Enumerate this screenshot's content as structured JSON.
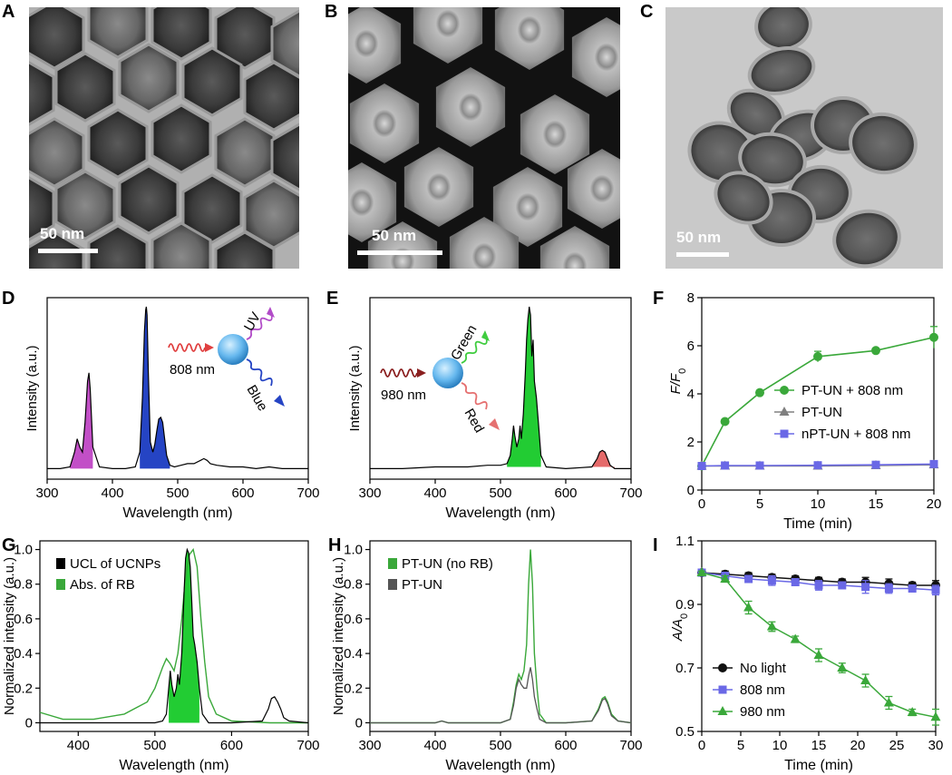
{
  "panels": {
    "A": {
      "letter": "A",
      "scale": "50 nm"
    },
    "B": {
      "letter": "B",
      "scale": "50 nm"
    },
    "C": {
      "letter": "C",
      "scale": "50 nm"
    },
    "D": {
      "letter": "D"
    },
    "E": {
      "letter": "E"
    },
    "F": {
      "letter": "F"
    },
    "G": {
      "letter": "G"
    },
    "H": {
      "letter": "H"
    },
    "I": {
      "letter": "I"
    }
  },
  "schemes": {
    "D": {
      "laser": "808 nm",
      "out1": "UV",
      "out2": "Blue"
    },
    "E": {
      "laser": "980 nm",
      "out1": "Green",
      "out2": "Red"
    }
  },
  "colors": {
    "uv": "#c24fc7",
    "blue": "#2544c4",
    "green": "#22cc33",
    "red": "#e56a6a",
    "line_green": "#3aa83a",
    "gray": "#808080",
    "purple_blue": "#6a68e6"
  },
  "chart_data": [
    {
      "id": "D",
      "type": "line",
      "xlabel": "Wavelength (nm)",
      "ylabel": "Intensity (a.u.)",
      "xlim": [
        300,
        700
      ],
      "xticks": [
        300,
        400,
        500,
        600,
        700
      ],
      "series": [
        {
          "x": [
            300,
            320,
            335,
            342,
            346,
            350,
            354,
            358,
            362,
            364,
            366,
            370,
            380,
            400,
            420,
            435,
            442,
            446,
            449,
            451,
            452,
            453,
            455,
            458,
            462,
            465,
            468,
            471,
            474,
            477,
            480,
            483,
            488,
            495,
            505,
            515,
            525,
            535,
            540,
            545,
            550,
            560,
            580,
            600,
            620,
            640,
            660,
            680,
            700
          ],
          "values": [
            0.02,
            0.02,
            0.03,
            0.12,
            0.2,
            0.15,
            0.12,
            0.3,
            0.55,
            0.6,
            0.5,
            0.15,
            0.03,
            0.02,
            0.02,
            0.03,
            0.12,
            0.45,
            0.85,
            0.98,
            1.0,
            0.95,
            0.6,
            0.18,
            0.12,
            0.17,
            0.25,
            0.32,
            0.33,
            0.3,
            0.2,
            0.1,
            0.04,
            0.03,
            0.04,
            0.05,
            0.05,
            0.07,
            0.08,
            0.07,
            0.05,
            0.04,
            0.03,
            0.03,
            0.02,
            0.03,
            0.02,
            0.02,
            0.02
          ]
        }
      ]
    },
    {
      "id": "E",
      "type": "line",
      "xlabel": "Wavelength (nm)",
      "ylabel": "Intensity (a.u.)",
      "xlim": [
        300,
        700
      ],
      "xticks": [
        300,
        400,
        500,
        600,
        700
      ],
      "series": [
        {
          "x": [
            300,
            350,
            400,
            450,
            480,
            500,
            510,
            515,
            518,
            520,
            522,
            525,
            528,
            530,
            532,
            535,
            538,
            540,
            542,
            544,
            546,
            548,
            550,
            552,
            555,
            558,
            562,
            570,
            600,
            640,
            648,
            652,
            656,
            660,
            664,
            668,
            675,
            700
          ],
          "values": [
            0.02,
            0.02,
            0.03,
            0.03,
            0.04,
            0.04,
            0.05,
            0.1,
            0.2,
            0.28,
            0.22,
            0.15,
            0.2,
            0.28,
            0.2,
            0.35,
            0.6,
            0.8,
            0.92,
            1.0,
            0.95,
            0.7,
            0.8,
            0.55,
            0.45,
            0.3,
            0.1,
            0.03,
            0.02,
            0.03,
            0.08,
            0.12,
            0.13,
            0.12,
            0.08,
            0.04,
            0.02,
            0.02
          ]
        }
      ]
    },
    {
      "id": "F",
      "type": "line",
      "xlabel": "Time (min)",
      "ylabel": "F/F0",
      "xlim": [
        0,
        20
      ],
      "ylim": [
        0,
        8
      ],
      "xticks": [
        0,
        5,
        10,
        15,
        20
      ],
      "yticks": [
        0,
        2,
        4,
        6,
        8
      ],
      "series": [
        {
          "name": "PT-UN + 808 nm",
          "x": [
            0,
            2,
            5,
            10,
            15,
            20
          ],
          "values": [
            1.0,
            2.85,
            4.05,
            5.55,
            5.8,
            6.35
          ],
          "err": [
            0.05,
            0.08,
            0.08,
            0.22,
            0.1,
            0.45
          ]
        },
        {
          "name": "PT-UN",
          "x": [
            0,
            2,
            5,
            10,
            15,
            20
          ],
          "values": [
            1.0,
            1.0,
            1.0,
            1.0,
            1.02,
            1.05
          ],
          "err": [
            0.05,
            0.05,
            0.05,
            0.05,
            0.05,
            0.05
          ]
        },
        {
          "name": "nPT-UN + 808 nm",
          "x": [
            0,
            2,
            5,
            10,
            15,
            20
          ],
          "values": [
            1.0,
            1.02,
            1.02,
            1.03,
            1.05,
            1.08
          ],
          "err": [
            0.05,
            0.05,
            0.05,
            0.05,
            0.05,
            0.05
          ]
        }
      ]
    },
    {
      "id": "G",
      "type": "line",
      "xlabel": "Wavelength (nm)",
      "ylabel": "Normalized intensity (a.u.)",
      "xlim": [
        350,
        700
      ],
      "ylim": [
        -0.05,
        1.05
      ],
      "xticks": [
        400,
        500,
        600,
        700
      ],
      "yticks": [
        0,
        0.2,
        0.4,
        0.6,
        0.8,
        1.0
      ],
      "series": [
        {
          "name": "UCL of UCNPs",
          "x": [
            350,
            400,
            450,
            480,
            500,
            510,
            515,
            518,
            520,
            522,
            525,
            528,
            530,
            532,
            535,
            538,
            540,
            542,
            544,
            546,
            548,
            550,
            552,
            555,
            558,
            562,
            570,
            600,
            640,
            648,
            652,
            656,
            660,
            664,
            668,
            675,
            700
          ],
          "values": [
            0,
            0,
            0,
            0,
            0,
            0.01,
            0.05,
            0.2,
            0.3,
            0.22,
            0.15,
            0.2,
            0.28,
            0.22,
            0.4,
            0.75,
            0.95,
            1.0,
            0.98,
            0.9,
            0.7,
            0.5,
            0.45,
            0.35,
            0.2,
            0.05,
            0,
            0,
            0.01,
            0.08,
            0.14,
            0.15,
            0.12,
            0.08,
            0.03,
            0.01,
            0
          ]
        },
        {
          "name": "Abs. of RB",
          "x": [
            350,
            380,
            420,
            460,
            490,
            500,
            510,
            515,
            520,
            525,
            530,
            535,
            540,
            545,
            550,
            555,
            560,
            565,
            570,
            580,
            600,
            650,
            700
          ],
          "values": [
            0.06,
            0.02,
            0.02,
            0.05,
            0.12,
            0.2,
            0.32,
            0.37,
            0.34,
            0.3,
            0.4,
            0.6,
            0.85,
            0.97,
            1.0,
            0.9,
            0.6,
            0.35,
            0.15,
            0.05,
            0.01,
            0,
            0
          ]
        }
      ]
    },
    {
      "id": "H",
      "type": "line",
      "xlabel": "Wavelength (nm)",
      "ylabel": "Normalized intensity (a.u.)",
      "xlim": [
        300,
        700
      ],
      "ylim": [
        -0.05,
        1.05
      ],
      "xticks": [
        300,
        400,
        500,
        600,
        700
      ],
      "yticks": [
        0,
        0.2,
        0.4,
        0.6,
        0.8,
        1.0
      ],
      "series": [
        {
          "name": "PT-UN (no RB)",
          "x": [
            300,
            400,
            410,
            420,
            500,
            515,
            520,
            524,
            528,
            532,
            536,
            540,
            543,
            546,
            549,
            552,
            556,
            560,
            570,
            600,
            640,
            650,
            656,
            660,
            664,
            670,
            680,
            700
          ],
          "values": [
            0,
            0,
            0.01,
            0,
            0,
            0.02,
            0.12,
            0.22,
            0.28,
            0.25,
            0.3,
            0.45,
            0.8,
            1.0,
            0.8,
            0.4,
            0.2,
            0.05,
            0,
            0,
            0.01,
            0.08,
            0.14,
            0.15,
            0.12,
            0.05,
            0.01,
            0
          ]
        },
        {
          "name": "PT-UN",
          "x": [
            300,
            400,
            410,
            420,
            500,
            515,
            520,
            524,
            528,
            532,
            536,
            540,
            543,
            546,
            549,
            552,
            556,
            560,
            570,
            600,
            640,
            650,
            656,
            660,
            664,
            670,
            680,
            700
          ],
          "values": [
            0,
            0,
            0.01,
            0,
            0,
            0.02,
            0.1,
            0.2,
            0.25,
            0.22,
            0.2,
            0.2,
            0.27,
            0.32,
            0.25,
            0.15,
            0.08,
            0.02,
            0,
            0,
            0.01,
            0.07,
            0.13,
            0.14,
            0.11,
            0.04,
            0.01,
            0
          ]
        }
      ]
    },
    {
      "id": "I",
      "type": "line",
      "xlabel": "Time (min)",
      "ylabel": "A/A0",
      "xlim": [
        0,
        30
      ],
      "ylim": [
        0.5,
        1.1
      ],
      "xticks": [
        0,
        5,
        10,
        15,
        20,
        25,
        30
      ],
      "yticks": [
        0.5,
        0.7,
        0.9,
        1.1
      ],
      "series": [
        {
          "name": "No light",
          "x": [
            0,
            3,
            6,
            9,
            12,
            15,
            18,
            21,
            24,
            27,
            30
          ],
          "values": [
            1.0,
            0.995,
            0.99,
            0.985,
            0.98,
            0.975,
            0.97,
            0.97,
            0.965,
            0.96,
            0.96
          ],
          "err": [
            0.005,
            0.01,
            0.01,
            0.01,
            0.01,
            0.01,
            0.01,
            0.015,
            0.015,
            0.01,
            0.015
          ]
        },
        {
          "name": "808 nm",
          "x": [
            0,
            3,
            6,
            9,
            12,
            15,
            18,
            21,
            24,
            27,
            30
          ],
          "values": [
            1.0,
            0.99,
            0.98,
            0.975,
            0.97,
            0.96,
            0.96,
            0.955,
            0.95,
            0.95,
            0.945
          ],
          "err": [
            0.005,
            0.01,
            0.01,
            0.015,
            0.01,
            0.015,
            0.01,
            0.02,
            0.015,
            0.01,
            0.015
          ]
        },
        {
          "name": "980 nm",
          "x": [
            0,
            3,
            6,
            9,
            12,
            15,
            18,
            21,
            24,
            27,
            30
          ],
          "values": [
            1.0,
            0.98,
            0.89,
            0.83,
            0.79,
            0.74,
            0.7,
            0.66,
            0.59,
            0.56,
            0.545
          ],
          "err": [
            0.005,
            0.01,
            0.02,
            0.015,
            0.01,
            0.02,
            0.015,
            0.02,
            0.02,
            0.01,
            0.025
          ]
        }
      ]
    }
  ]
}
